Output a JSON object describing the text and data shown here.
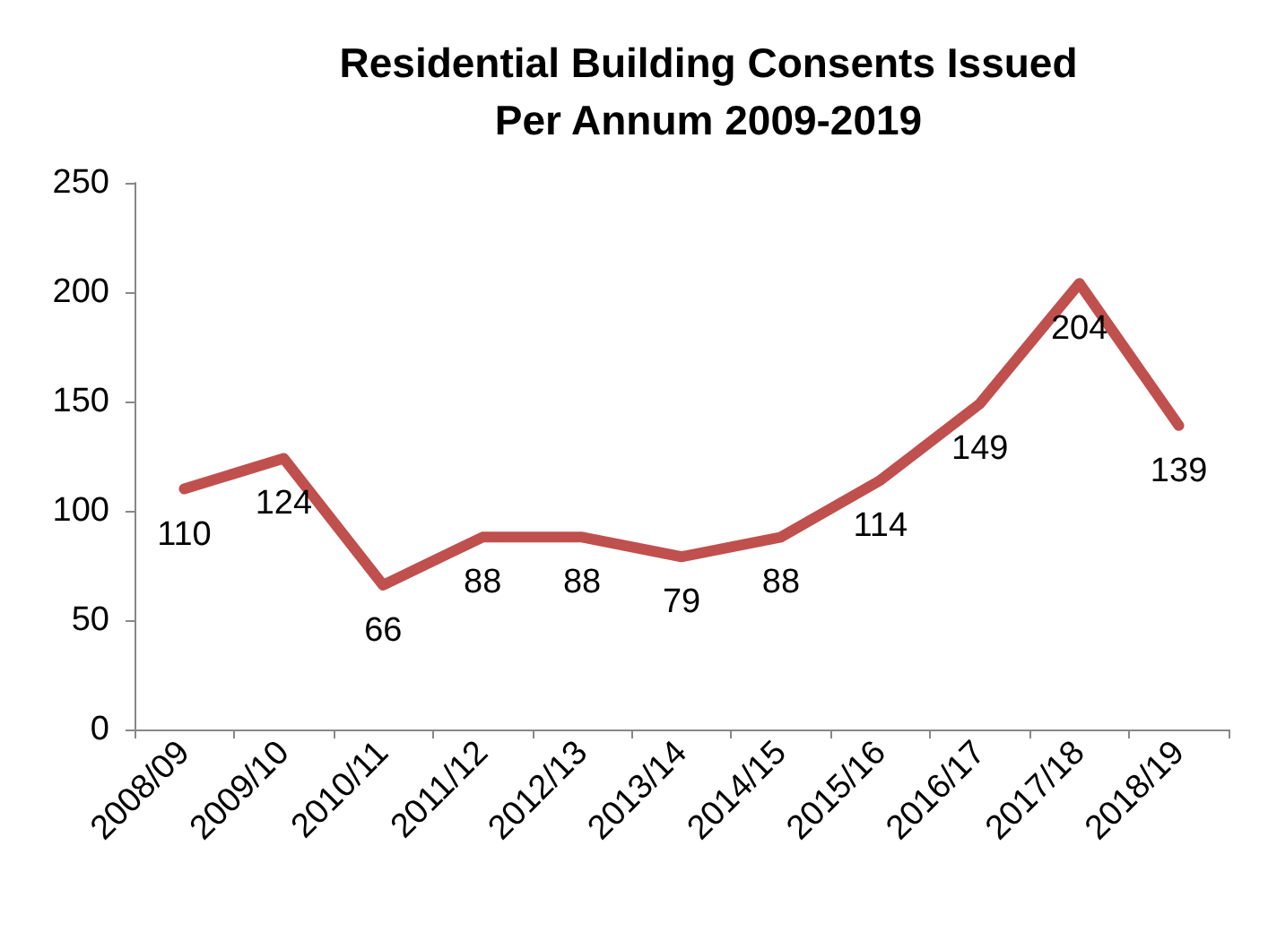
{
  "chart_data": {
    "type": "line",
    "title": "Residential Building Consents Issued\nPer Annum 2009-2019",
    "categories": [
      "2008/09",
      "2009/10",
      "2010/11",
      "2011/12",
      "2012/13",
      "2013/14",
      "2014/15",
      "2015/16",
      "2016/17",
      "2017/18",
      "2018/19"
    ],
    "values": [
      110,
      124,
      66,
      88,
      88,
      79,
      88,
      114,
      149,
      204,
      139
    ],
    "color": "#c0504d",
    "ylim": [
      0,
      250
    ],
    "yticks": [
      0,
      50,
      100,
      150,
      200,
      250
    ],
    "grid": false,
    "marker": "none",
    "line_style": "solid",
    "data_labels": true
  }
}
